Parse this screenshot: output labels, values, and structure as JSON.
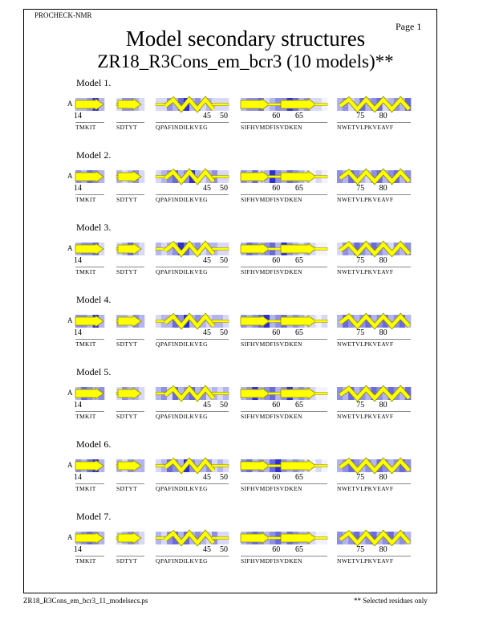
{
  "header": {
    "program": "PROCHECK-NMR",
    "page": "Page  1",
    "title": "Model secondary structures",
    "subtitle": "ZR18_R3Cons_em_bcr3 (10 models)**"
  },
  "footer": {
    "filename": "ZR18_R3Cons_em_bcr3_11_modelsecs.ps",
    "note": "** Selected residues only"
  },
  "chain_id": "A",
  "segments": [
    {
      "seq": "TMKIT",
      "length": 5,
      "start": 14,
      "ticks": [
        "14"
      ]
    },
    {
      "seq": "SDTYT",
      "length": 5,
      "ticks": []
    },
    {
      "seq": "QPAFINDILKVEG",
      "length": 13,
      "ticks": [
        "45",
        "50"
      ]
    },
    {
      "seq": "SIFHVMDFISVDKEN",
      "length": 15,
      "ticks": [
        "60",
        "65"
      ]
    },
    {
      "seq": "NWETVLPKVEAVF",
      "length": 13,
      "ticks": [
        "75",
        "80"
      ]
    }
  ],
  "models": [
    {
      "label": "Model  1.",
      "shade": [
        [
          2,
          2,
          3,
          5,
          2
        ],
        [
          1,
          3,
          3,
          2,
          1
        ],
        [
          1,
          1,
          3,
          2,
          4,
          5,
          2,
          3,
          1,
          2,
          1,
          1,
          1
        ],
        [
          2,
          3,
          3,
          4,
          1,
          2,
          3,
          3,
          5,
          4,
          2,
          3,
          1,
          1,
          0
        ],
        [
          2,
          3,
          1,
          2,
          4,
          2,
          3,
          4,
          1,
          2,
          3,
          2,
          4
        ]
      ]
    },
    {
      "label": "Model  2.",
      "shade": [
        [
          3,
          2,
          4,
          3,
          2
        ],
        [
          2,
          1,
          2,
          3,
          1
        ],
        [
          1,
          2,
          3,
          4,
          2,
          3,
          5,
          2,
          1,
          2,
          3,
          1,
          1
        ],
        [
          3,
          2,
          4,
          1,
          2,
          5,
          3,
          2,
          4,
          3,
          2,
          1,
          0,
          1,
          0
        ],
        [
          3,
          2,
          4,
          3,
          2,
          1,
          3,
          4,
          2,
          3,
          4,
          2,
          3
        ]
      ]
    },
    {
      "label": "Model  3.",
      "shade": [
        [
          2,
          3,
          3,
          4,
          1
        ],
        [
          1,
          2,
          4,
          2,
          1
        ],
        [
          2,
          1,
          2,
          3,
          5,
          4,
          2,
          3,
          1,
          2,
          2,
          1,
          1
        ],
        [
          2,
          4,
          3,
          2,
          3,
          4,
          2,
          5,
          3,
          2,
          1,
          2,
          1,
          0,
          0
        ],
        [
          1,
          3,
          2,
          4,
          3,
          2,
          4,
          3,
          2,
          1,
          3,
          2,
          3
        ]
      ]
    },
    {
      "label": "Model  4.",
      "shade": [
        [
          3,
          3,
          2,
          5,
          2
        ],
        [
          2,
          2,
          1,
          3,
          2
        ],
        [
          1,
          2,
          2,
          4,
          3,
          5,
          2,
          3,
          2,
          1,
          2,
          2,
          1
        ],
        [
          3,
          2,
          3,
          4,
          5,
          2,
          3,
          4,
          2,
          3,
          2,
          1,
          1,
          0,
          1
        ],
        [
          2,
          4,
          3,
          2,
          3,
          4,
          2,
          3,
          4,
          2,
          3,
          4,
          2
        ]
      ]
    },
    {
      "label": "Model  5.",
      "shade": [
        [
          2,
          4,
          3,
          2,
          3
        ],
        [
          1,
          3,
          2,
          2,
          1
        ],
        [
          2,
          3,
          1,
          4,
          2,
          3,
          4,
          2,
          3,
          1,
          2,
          1,
          2
        ],
        [
          2,
          3,
          5,
          2,
          3,
          4,
          2,
          3,
          5,
          2,
          3,
          2,
          1,
          0,
          0
        ],
        [
          3,
          2,
          4,
          2,
          3,
          2,
          4,
          3,
          2,
          4,
          3,
          2,
          4
        ]
      ]
    },
    {
      "label": "Model  6.",
      "shade": [
        [
          3,
          2,
          4,
          5,
          2
        ],
        [
          2,
          1,
          3,
          2,
          2
        ],
        [
          1,
          2,
          4,
          3,
          2,
          5,
          3,
          2,
          2,
          3,
          1,
          2,
          1
        ],
        [
          3,
          4,
          2,
          3,
          2,
          4,
          5,
          3,
          2,
          3,
          2,
          1,
          0,
          1,
          0
        ],
        [
          2,
          3,
          4,
          3,
          2,
          3,
          2,
          4,
          3,
          2,
          3,
          4,
          3
        ]
      ]
    },
    {
      "label": "Model  7.",
      "shade": [
        [
          2,
          3,
          4,
          3,
          2
        ],
        [
          1,
          2,
          3,
          2,
          1
        ],
        [
          2,
          1,
          3,
          4,
          2,
          4,
          2,
          3,
          2,
          1,
          3,
          1,
          1
        ],
        [
          2,
          3,
          4,
          3,
          2,
          3,
          4,
          2,
          4,
          3,
          2,
          2,
          1,
          0,
          0
        ],
        [
          3,
          2,
          3,
          4,
          2,
          3,
          4,
          2,
          3,
          4,
          2,
          3,
          2
        ]
      ]
    }
  ]
}
